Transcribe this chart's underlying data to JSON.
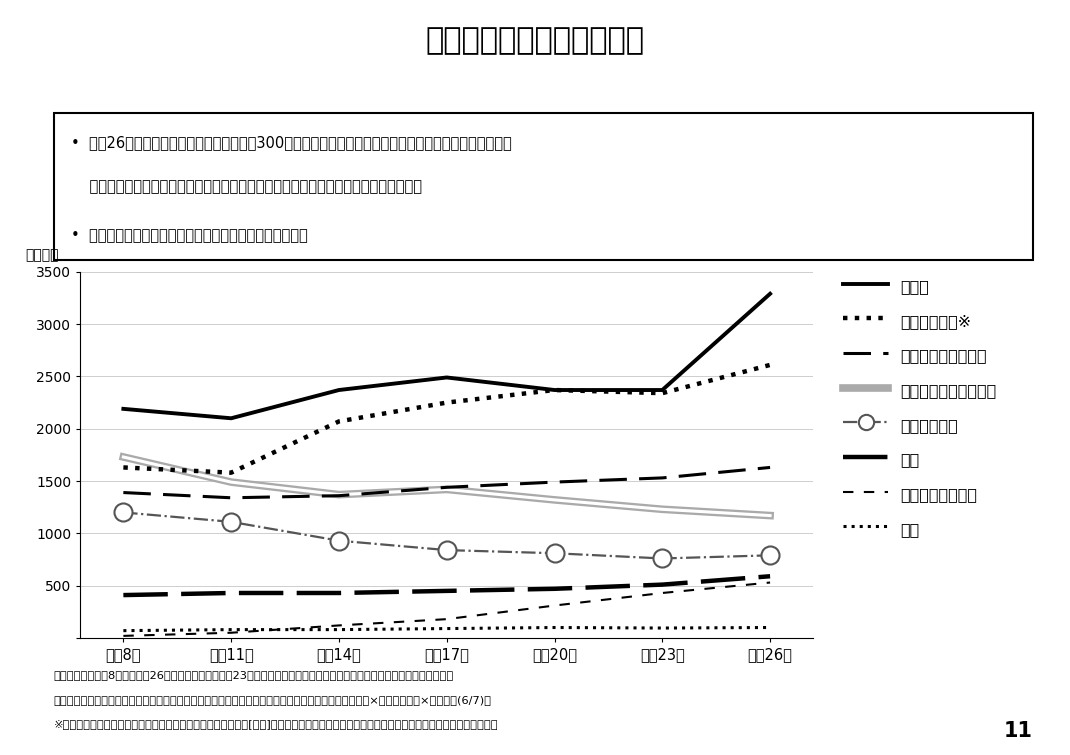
{
  "title": "傷病別総患者数の年次推移",
  "ylabel": "（千人）",
  "years": [
    "平成8年",
    "平成11年",
    "平成14年",
    "平成17年",
    "平成20年",
    "平成23年",
    "平成26年"
  ],
  "year_vals": [
    0,
    1,
    2,
    3,
    4,
    5,
    6
  ],
  "series": [
    {
      "label": "糖尿病",
      "values": [
        2190,
        2100,
        2370,
        2490,
        2370,
        2370,
        3290
      ],
      "style": "solid_thick"
    },
    {
      "label": "主な精神疾患※",
      "values": [
        1630,
        1580,
        2070,
        2250,
        2370,
        2340,
        2610
      ],
      "style": "dotted_thick"
    },
    {
      "label": "悪性新生物（がん）",
      "values": [
        1390,
        1340,
        1360,
        1440,
        1490,
        1530,
        1630
      ],
      "style": "dashed_medium"
    },
    {
      "label": "脳血管疾患（脳卒中）",
      "values": [
        1730,
        1490,
        1370,
        1420,
        1320,
        1230,
        1170
      ],
      "style": "double_solid"
    },
    {
      "label": "虚血性心疾患",
      "values": [
        1200,
        1110,
        930,
        840,
        810,
        760,
        790
      ],
      "style": "dashdot_oval"
    },
    {
      "label": "骨折",
      "values": [
        410,
        430,
        430,
        450,
        470,
        510,
        590
      ],
      "style": "thick_dash"
    },
    {
      "label": "アルツハイマー病",
      "values": [
        20,
        50,
        120,
        180,
        310,
        430,
        530
      ],
      "style": "thin_dash"
    },
    {
      "label": "肺炎",
      "values": [
        70,
        80,
        80,
        90,
        100,
        95,
        100
      ],
      "style": "dotted_small"
    }
  ],
  "ylim": [
    0,
    3500
  ],
  "yticks": [
    0,
    500,
    1000,
    1500,
    2000,
    2500,
    3000,
    3500
  ],
  "background_color": "#ffffff",
  "bullet1_line1": "平成26年の総患者数としては、糖尿病が300万人と推計され、主な精神疾患（統合失調症、気分障害、",
  "bullet1_line2": "神経症性障害等の合計）、悪性新生物（がん）、脳血管疾患、虚血性心疾患が続く。",
  "bullet2": "骨折、アルツハイマー病が増加傾向で、肺炎は横ばい。",
  "footnote1": "・患者調査（平成8年から平成26年）を元に作成。平成23年は宮城県の石巻医療圏、気仙沼医療圏及び福島県を除いた数値。",
  "footnote2": "・総患者数は、次の式により算出する推計（総患者数＝入院患者数＋初診外来患者数＋再来外来患者数×平均診療間隔×調整係数(6/7)）",
  "footnote3": "※「統合失調症，統合失調症型障害及び妄想性障害」、「気分[感情]障害」と「神経症性障害，ストレス関連障害及び身体表現性障害」の合計"
}
